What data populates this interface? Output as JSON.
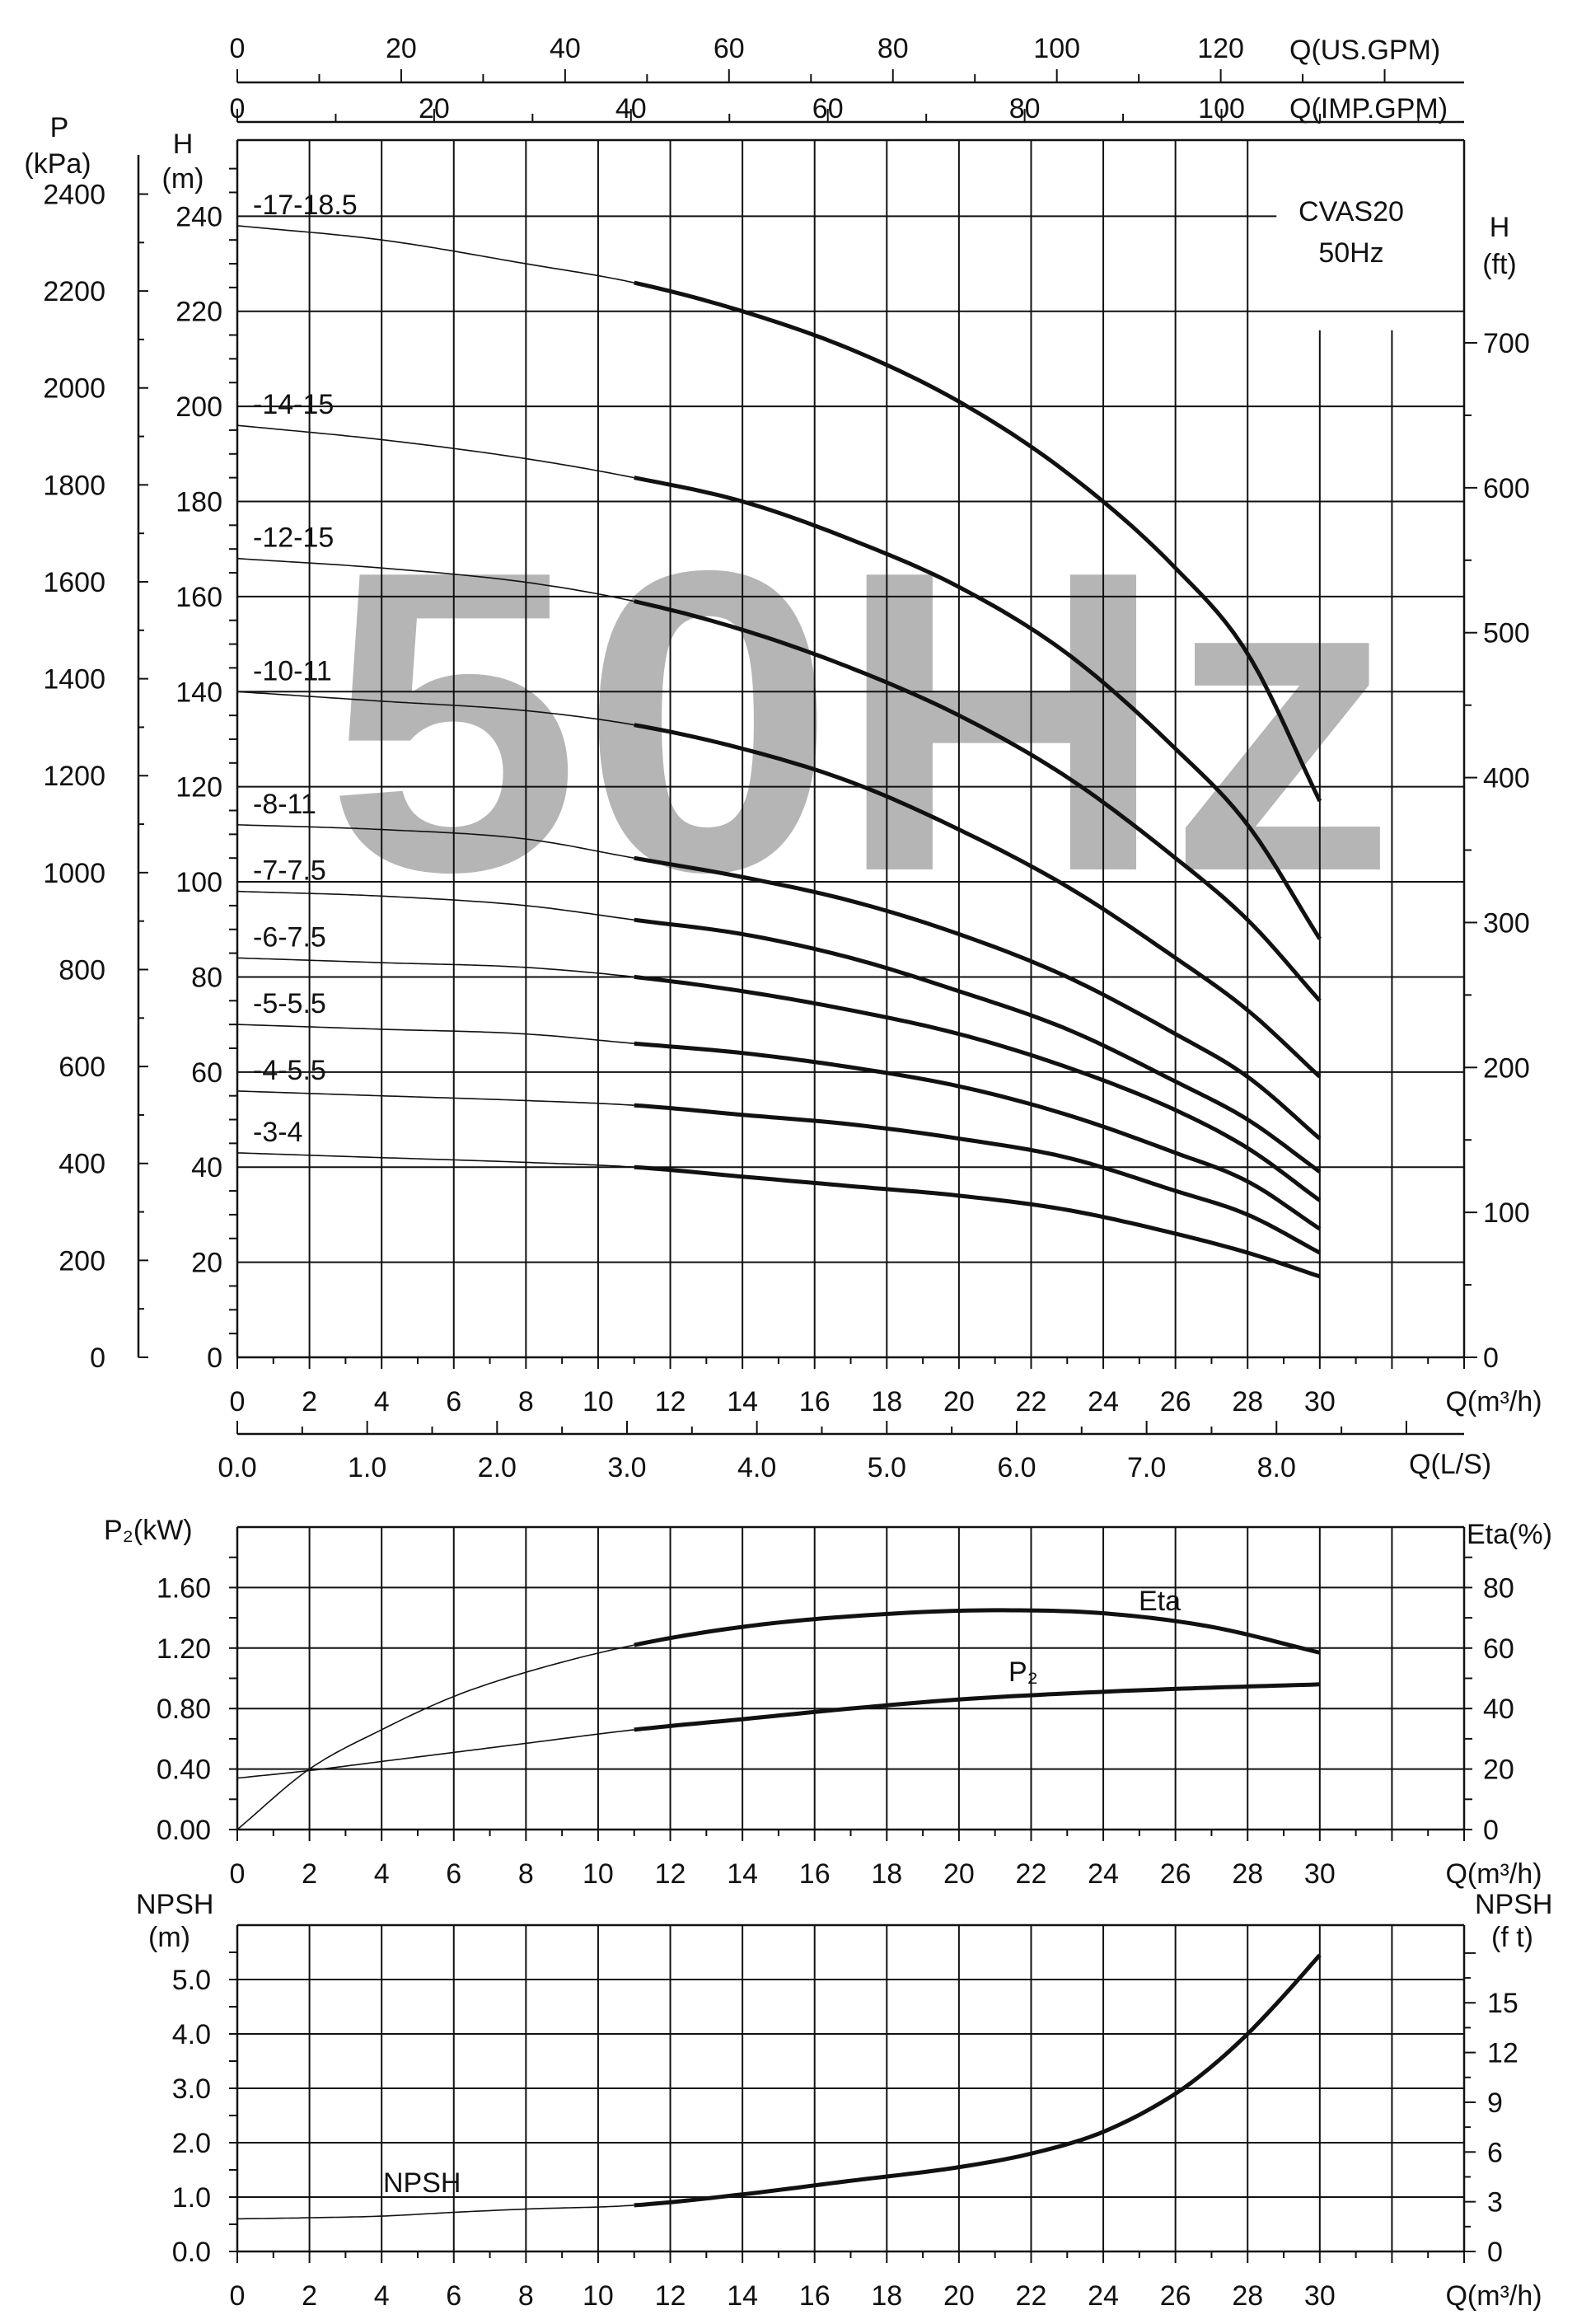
{
  "watermark": "50Hz",
  "model": {
    "line1": "CVAS20",
    "line2": "50Hz"
  },
  "chart_data": [
    {
      "type": "line",
      "title": "",
      "x_label": "Q(m³/h)",
      "xlim": [
        0,
        34
      ],
      "x_ticks": [
        0,
        2,
        4,
        6,
        8,
        10,
        12,
        14,
        16,
        18,
        20,
        22,
        24,
        26,
        28,
        30
      ],
      "y_label_left_unit": "H",
      "y_label_left_unit2": "(m)",
      "ylim": [
        0,
        256
      ],
      "y_ticks": [
        0,
        20,
        40,
        60,
        80,
        100,
        120,
        140,
        160,
        180,
        200,
        220,
        240
      ],
      "pressure_axis": {
        "label": "P",
        "unit": "(kPa)",
        "ticks": [
          0,
          200,
          400,
          600,
          800,
          1000,
          1200,
          1400,
          1600,
          1800,
          2000,
          2200,
          2400
        ]
      },
      "feet_axis": {
        "label": "H",
        "unit": "(ft)",
        "ticks": [
          0,
          100,
          200,
          300,
          400,
          500,
          600,
          700
        ]
      },
      "us_gpm_axis": {
        "label": "Q(US.GPM)",
        "ticks": [
          0,
          20,
          40,
          60,
          80,
          100,
          120
        ]
      },
      "imp_gpm_axis": {
        "label": "Q(IMP.GPM)",
        "ticks": [
          0,
          20,
          40,
          60,
          80,
          100
        ]
      },
      "ls_axis": {
        "label": "Q(L/S)",
        "ticks": [
          "0.0",
          "1.0",
          "2.0",
          "3.0",
          "4.0",
          "5.0",
          "6.0",
          "7.0",
          "8.0"
        ]
      },
      "recommended_range": [
        11,
        30
      ],
      "series": [
        {
          "name": "-17-18.5",
          "x": [
            0,
            4,
            8,
            11,
            14,
            17,
            20,
            23,
            26,
            28,
            30
          ],
          "y": [
            238,
            235,
            230,
            226,
            220,
            212,
            201,
            186,
            166,
            148,
            117
          ]
        },
        {
          "name": "-14-15",
          "x": [
            0,
            4,
            8,
            11,
            14,
            17,
            20,
            23,
            26,
            28,
            30
          ],
          "y": [
            196,
            193,
            189,
            185,
            180,
            172,
            162,
            148,
            128,
            112,
            88
          ]
        },
        {
          "name": "-12-15",
          "x": [
            0,
            4,
            8,
            11,
            14,
            17,
            20,
            23,
            26,
            28,
            30
          ],
          "y": [
            168,
            166,
            163,
            159,
            153,
            145,
            135,
            122,
            105,
            92,
            75
          ]
        },
        {
          "name": "-10-11",
          "x": [
            0,
            4,
            8,
            11,
            14,
            17,
            20,
            23,
            26,
            28,
            30
          ],
          "y": [
            140,
            138,
            136,
            133,
            128,
            121,
            111,
            99,
            84,
            73,
            59
          ]
        },
        {
          "name": "-8-11",
          "x": [
            0,
            4,
            8,
            11,
            14,
            17,
            20,
            23,
            26,
            28,
            30
          ],
          "y": [
            112,
            111,
            109,
            105,
            101,
            96,
            89,
            80,
            68,
            59,
            46
          ]
        },
        {
          "name": "-7-7.5",
          "x": [
            0,
            4,
            8,
            11,
            14,
            17,
            20,
            23,
            26,
            28,
            30
          ],
          "y": [
            98,
            97,
            95,
            92,
            89,
            84,
            77,
            69,
            58,
            50,
            39
          ]
        },
        {
          "name": "-6-7.5",
          "x": [
            0,
            4,
            8,
            11,
            14,
            17,
            20,
            23,
            26,
            28,
            30
          ],
          "y": [
            84,
            83,
            82,
            80,
            77,
            73,
            68,
            61,
            52,
            44,
            33
          ]
        },
        {
          "name": "-5-5.5",
          "x": [
            0,
            4,
            8,
            11,
            14,
            17,
            20,
            23,
            26,
            28,
            30
          ],
          "y": [
            70,
            69,
            68,
            66,
            64,
            61,
            57,
            51,
            43,
            37,
            27
          ]
        },
        {
          "name": "-4-5.5",
          "x": [
            0,
            4,
            8,
            11,
            14,
            17,
            20,
            23,
            26,
            28,
            30
          ],
          "y": [
            56,
            55,
            54,
            53,
            51,
            49,
            46,
            42,
            35,
            30,
            22
          ]
        },
        {
          "name": "-3-4",
          "x": [
            0,
            4,
            8,
            11,
            14,
            17,
            20,
            23,
            26,
            28,
            30
          ],
          "y": [
            43,
            42,
            41,
            40,
            38,
            36,
            34,
            31,
            26,
            22,
            17
          ]
        }
      ]
    },
    {
      "type": "line",
      "title": "",
      "x_label": "Q(m³/h)",
      "xlim": [
        0,
        34
      ],
      "x_ticks": [
        0,
        2,
        4,
        6,
        8,
        10,
        12,
        14,
        16,
        18,
        20,
        22,
        24,
        26,
        28,
        30
      ],
      "y_label_left": "P₂(kW)",
      "ylim": [
        0,
        2.0
      ],
      "y_ticks": [
        "0.00",
        "0.40",
        "0.80",
        "1.20",
        "1.60"
      ],
      "y_label_right": "Eta(%)",
      "y2lim": [
        0,
        100
      ],
      "y2_ticks": [
        0,
        20,
        40,
        60,
        80
      ],
      "recommended_range": [
        11,
        30
      ],
      "series": [
        {
          "name": "Eta",
          "axis": "right",
          "x": [
            0,
            2,
            4,
            6,
            8,
            11,
            14,
            17,
            21,
            24,
            27,
            30
          ],
          "y": [
            0,
            20,
            33,
            44,
            52,
            61,
            67,
            70.5,
            72.5,
            71.5,
            67,
            58.5
          ]
        },
        {
          "name": "P₂",
          "axis": "left",
          "x": [
            0,
            2,
            4,
            6,
            8,
            11,
            14,
            17,
            20,
            23,
            26,
            30
          ],
          "y": [
            0.34,
            0.39,
            0.45,
            0.51,
            0.57,
            0.66,
            0.73,
            0.8,
            0.86,
            0.9,
            0.93,
            0.96
          ]
        }
      ]
    },
    {
      "type": "line",
      "title": "",
      "x_label": "Q(m³/h)",
      "xlim": [
        0,
        34
      ],
      "x_ticks": [
        0,
        2,
        4,
        6,
        8,
        10,
        12,
        14,
        16,
        18,
        20,
        22,
        24,
        26,
        28,
        30
      ],
      "y_label_left": "NPSH",
      "y_label_left_unit": "(m)",
      "ylim": [
        0,
        6.0
      ],
      "y_ticks": [
        "0.0",
        "1.0",
        "2.0",
        "3.0",
        "4.0",
        "5.0"
      ],
      "y_label_right": "NPSH",
      "y_label_right_unit": "(f t)",
      "y2_ticks": [
        0,
        3,
        6,
        9,
        12,
        15
      ],
      "recommended_range": [
        11,
        30
      ],
      "series": [
        {
          "name": "NPSH",
          "x": [
            0,
            2,
            4,
            6,
            8,
            11,
            14,
            17,
            20,
            22,
            24,
            26,
            27,
            28,
            29,
            30
          ],
          "y": [
            0.6,
            0.62,
            0.65,
            0.72,
            0.78,
            0.85,
            1.05,
            1.3,
            1.55,
            1.8,
            2.2,
            2.9,
            3.4,
            4.0,
            4.7,
            5.45
          ]
        }
      ]
    }
  ]
}
